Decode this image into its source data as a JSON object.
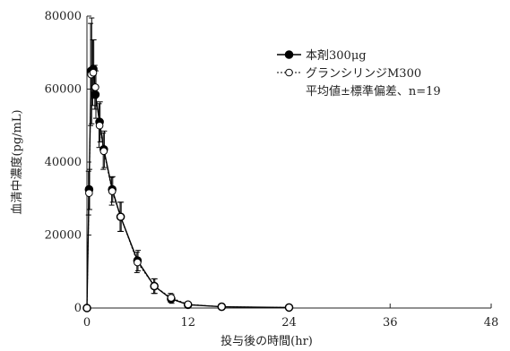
{
  "chart_data": {
    "type": "line",
    "xlabel": "投与後の時間(hr)",
    "ylabel": "血清中濃度(pg/mL)",
    "xlim": [
      0,
      48
    ],
    "ylim": [
      0,
      80000
    ],
    "xticks": [
      0,
      12,
      24,
      36,
      48
    ],
    "yticks": [
      0,
      20000,
      40000,
      60000,
      80000
    ],
    "legend_position": "top-right",
    "legend_note": "平均値±標準偏差、n=19",
    "series": [
      {
        "name": "本剤300μg",
        "marker": "filled-circle",
        "line": "solid",
        "color": "#000000",
        "x": [
          0,
          0.25,
          0.5,
          0.75,
          1,
          1.5,
          2,
          3,
          4,
          6,
          8,
          10,
          12,
          16,
          24
        ],
        "y": [
          0,
          32500,
          65000,
          65500,
          58500,
          51000,
          43500,
          32500,
          25000,
          13000,
          6000,
          2500,
          900,
          350,
          150
        ],
        "err": [
          0,
          5500,
          14500,
          8000,
          6500,
          5500,
          5000,
          3500,
          4000,
          2800,
          2000,
          1200,
          500,
          200,
          100
        ]
      },
      {
        "name": "グランシリンジM300",
        "marker": "open-circle",
        "line": "dotted",
        "color": "#000000",
        "x": [
          0,
          0.25,
          0.5,
          0.75,
          1,
          1.5,
          2,
          3,
          4,
          6,
          8,
          10,
          12,
          16,
          24
        ],
        "y": [
          0,
          31500,
          64000,
          64500,
          60500,
          50000,
          43000,
          32000,
          25000,
          12500,
          6000,
          2800,
          1000,
          350,
          150
        ],
        "err": [
          0,
          6000,
          14000,
          9000,
          6000,
          6000,
          5000,
          3800,
          4000,
          2800,
          2000,
          1200,
          500,
          200,
          100
        ]
      }
    ]
  }
}
